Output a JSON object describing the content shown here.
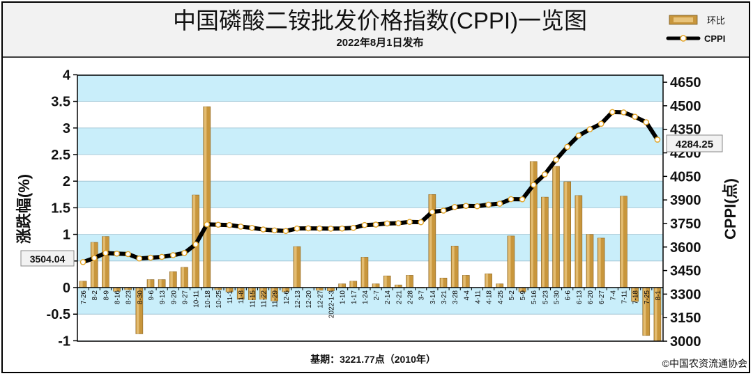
{
  "header": {
    "title": "中国磷酸二铵批发价格指数(CPPI)一览图",
    "subtitle": "2022年8月1日发布"
  },
  "legend": {
    "bar_label": "环比",
    "line_label": "CPPI"
  },
  "footer": {
    "base_note": "基期：3221.77点（2010年）",
    "copyright": "©中国农资流通协会"
  },
  "callouts": {
    "first_value": "3504.04",
    "last_value": "4284.25"
  },
  "colors": {
    "plot_stripe": "#c9eefa",
    "bar_gold": "#c8963c",
    "bar_light": "#e8c37a",
    "line": "#000000",
    "marker_fill": "#ffffff",
    "marker_edge": "#e2a324"
  },
  "chart_data": {
    "type": "bar+line",
    "grid": true,
    "legend_position": "top-right",
    "categories": [
      "7-26",
      "8-2",
      "8-9",
      "8-16",
      "8-23",
      "8-30",
      "9-6",
      "9-13",
      "9-20",
      "9-27",
      "10-11",
      "10-18",
      "10-25",
      "11-1",
      "11-8",
      "11-15",
      "11-22",
      "11-29",
      "12-6",
      "12-13",
      "12-20",
      "12-27",
      "2022-1-3",
      "1-10",
      "1-17",
      "1-24",
      "2-7",
      "2-14",
      "2-21",
      "2-28",
      "3-7",
      "3-14",
      "3-21",
      "3-28",
      "4-4",
      "4-11",
      "4-18",
      "4-25",
      "5-2",
      "5-9",
      "5-16",
      "5-23",
      "5-30",
      "6-6",
      "6-13",
      "6-20",
      "6-27",
      "7-4",
      "7-11",
      "7-18",
      "7-25",
      "8-1"
    ],
    "y_left": {
      "label": "涨跌幅(%)",
      "ticks": [
        "4",
        "3.5",
        "3",
        "2.5",
        "2",
        "1.5",
        "1",
        "0.5",
        "0",
        "-0.5",
        "-1"
      ],
      "range": [
        -1,
        4
      ]
    },
    "y_right": {
      "label": "CPPI(点)",
      "ticks": [
        "4650",
        "4500",
        "4350",
        "4200",
        "4050",
        "3900",
        "3750",
        "3600",
        "3450",
        "3300",
        "3150",
        "3000"
      ],
      "range": [
        3000,
        4700
      ]
    },
    "series": [
      {
        "name": "环比",
        "axis": "left",
        "kind": "bar",
        "values": [
          0.12,
          0.85,
          0.96,
          -0.07,
          -0.04,
          -0.87,
          0.15,
          0.15,
          0.3,
          0.38,
          1.74,
          3.4,
          -0.04,
          -0.08,
          -0.22,
          -0.23,
          -0.22,
          -0.25,
          -0.08,
          0.77,
          0.0,
          -0.05,
          -0.06,
          0.07,
          0.12,
          0.57,
          0.07,
          0.22,
          0.05,
          0.23,
          -0.01,
          1.75,
          0.18,
          0.78,
          0.23,
          0.0,
          0.26,
          0.07,
          0.97,
          -0.08,
          2.37,
          1.7,
          2.28,
          1.99,
          1.73,
          1.0,
          0.93,
          0.0,
          1.72,
          -0.26,
          -0.9,
          -1.0
        ]
      },
      {
        "name": "CPPI",
        "axis": "right",
        "kind": "line",
        "values": [
          3504,
          3530,
          3562,
          3558,
          3555,
          3527,
          3532,
          3537,
          3548,
          3562,
          3617,
          3744,
          3742,
          3740,
          3730,
          3722,
          3712,
          3706,
          3702,
          3718,
          3719,
          3718,
          3717,
          3718,
          3722,
          3740,
          3743,
          3750,
          3752,
          3760,
          3758,
          3824,
          3832,
          3855,
          3862,
          3860,
          3870,
          3876,
          3905,
          3904,
          3996,
          4063,
          4156,
          4238,
          4310,
          4350,
          4385,
          4460,
          4458,
          4430,
          4395,
          4284.25
        ]
      }
    ]
  }
}
